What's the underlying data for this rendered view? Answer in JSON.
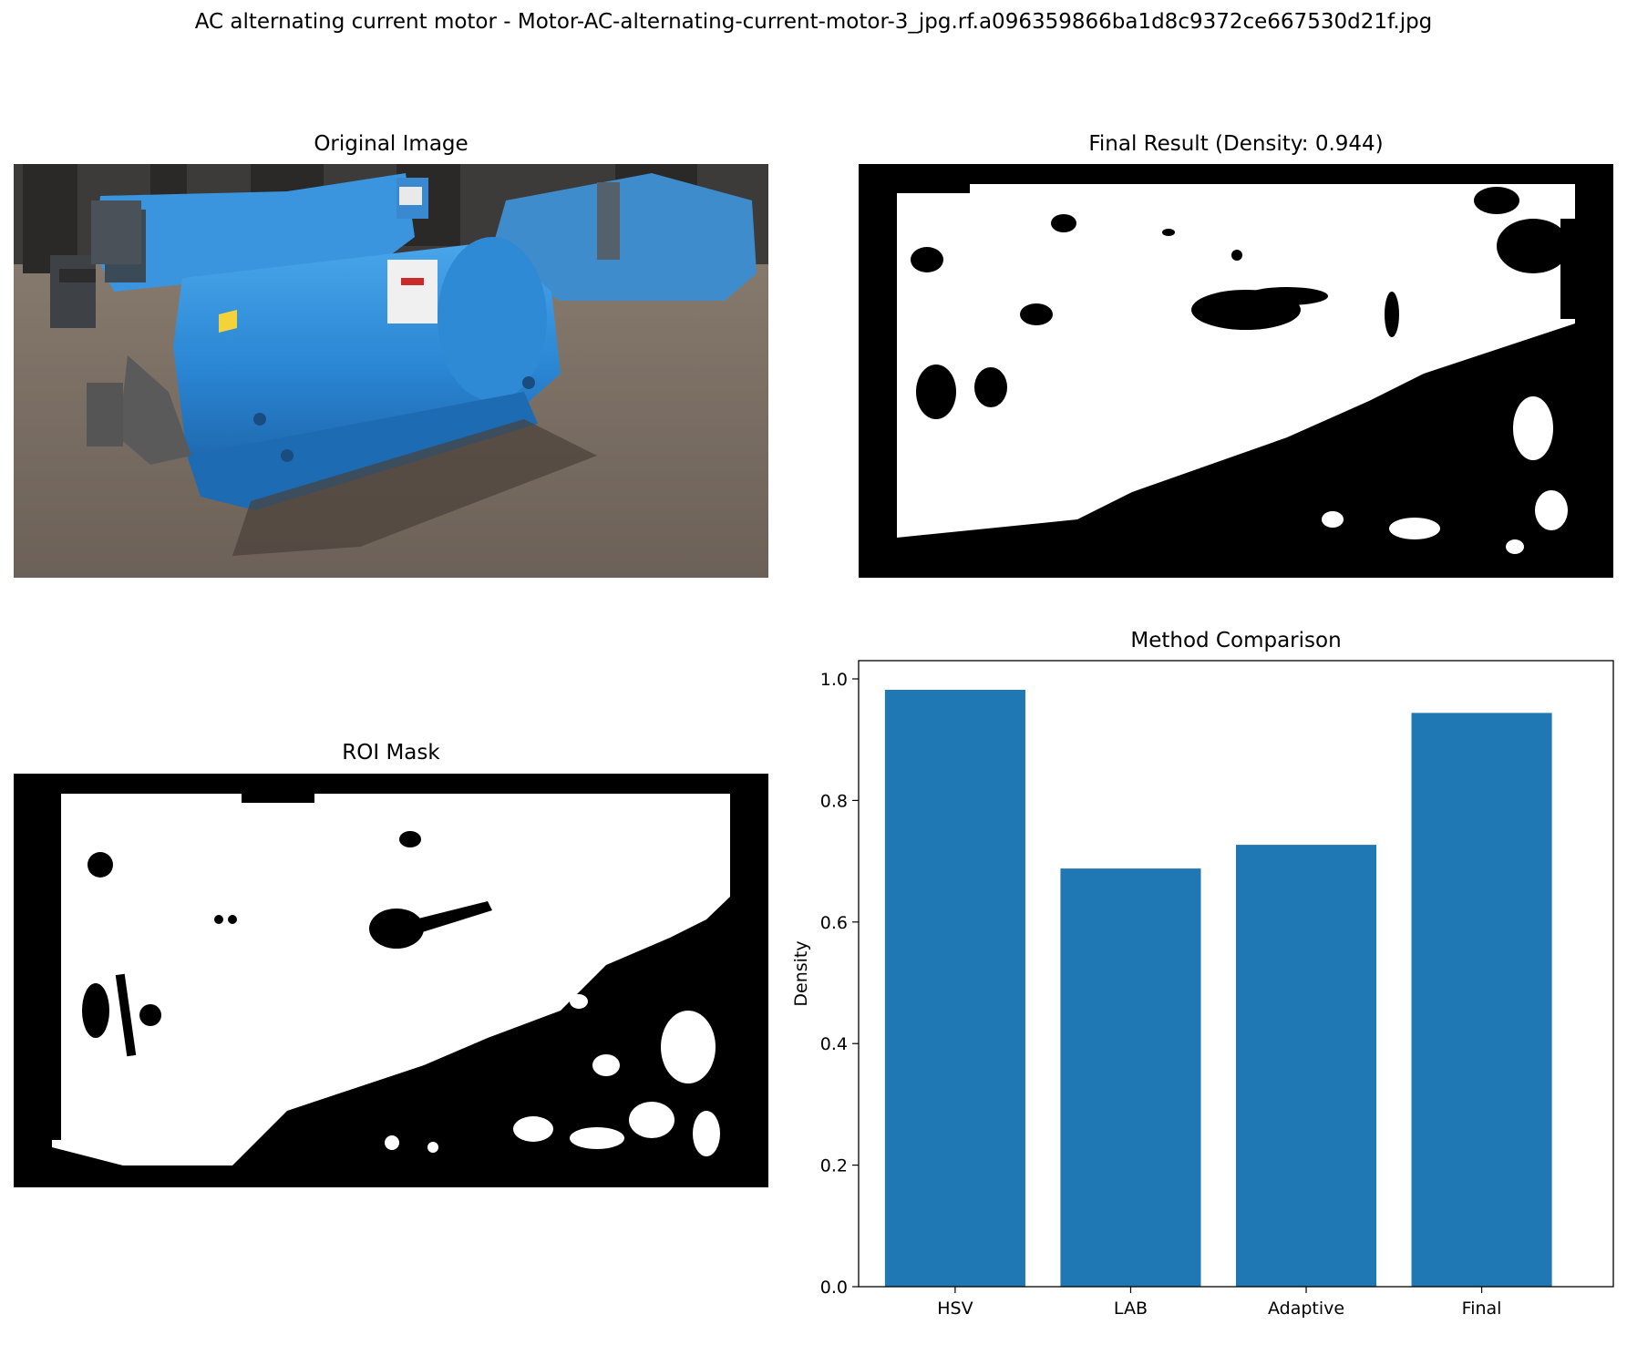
{
  "figure": {
    "suptitle": "AC alternating current motor - Motor-AC-alternating-current-motor-3_jpg.rf.a096359866ba1d8c9372ce667530d21f.jpg"
  },
  "panels": {
    "original": {
      "title": "Original Image"
    },
    "final": {
      "title": "Final Result (Density: 0.944)"
    },
    "roi": {
      "title": "ROI Mask"
    },
    "comparison": {
      "title": "Method Comparison"
    }
  },
  "colors": {
    "bar": "#1f77b4",
    "motor_blue": "#2b86d4",
    "ground": "#7a6e63",
    "mask_fg": "#ffffff",
    "mask_bg": "#000000"
  },
  "chart_data": {
    "type": "bar",
    "title": "Method Comparison",
    "categories": [
      "HSV",
      "LAB",
      "Adaptive",
      "Final"
    ],
    "values": [
      0.982,
      0.688,
      0.727,
      0.944
    ],
    "xlabel": "",
    "ylabel": "Density",
    "ylim": [
      0,
      1.03
    ],
    "yticks": [
      "0.0",
      "0.2",
      "0.4",
      "0.6",
      "0.8",
      "1.0"
    ],
    "grid": false,
    "legend": "none"
  }
}
